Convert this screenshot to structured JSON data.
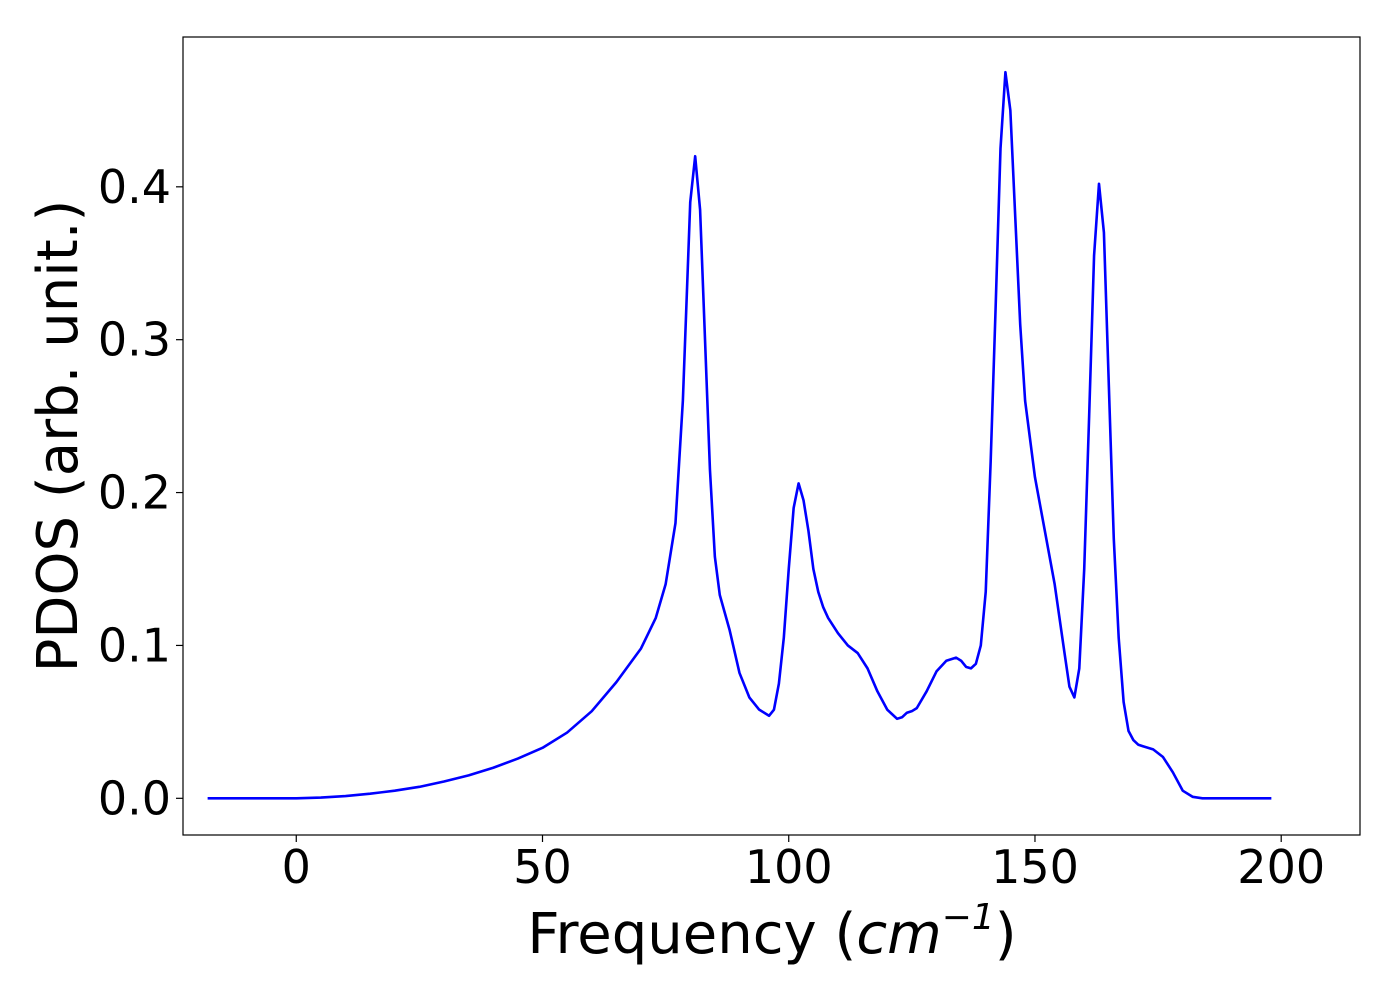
{
  "chart_data": {
    "type": "line",
    "title": "",
    "xlabel": "Frequency",
    "xlabel_unit_base": "cm",
    "xlabel_unit_exp": "−1",
    "ylabel": "PDOS (arb. unit.)",
    "xlim": [
      -23,
      216
    ],
    "ylim": [
      -0.024,
      0.498
    ],
    "xticks": [
      0,
      50,
      100,
      150,
      200
    ],
    "xtick_labels": [
      "0",
      "50",
      "100",
      "150",
      "200"
    ],
    "yticks": [
      0.0,
      0.1,
      0.2,
      0.3,
      0.4
    ],
    "ytick_labels": [
      "0.0",
      "0.1",
      "0.2",
      "0.3",
      "0.4"
    ],
    "grid": false,
    "legend": "none",
    "series": [
      {
        "color": "#0000ff",
        "x": [
          -18,
          0,
          5,
          10,
          15,
          20,
          25,
          30,
          35,
          40,
          45,
          50,
          55,
          60,
          65,
          70,
          73,
          75,
          77,
          78.5,
          80,
          81,
          82,
          83,
          84,
          85,
          86,
          88,
          90,
          92,
          94,
          96,
          97,
          98,
          99,
          100,
          101,
          102,
          103,
          104,
          105,
          106,
          107,
          108,
          110,
          112,
          114,
          116,
          118,
          120,
          122,
          123,
          124,
          125,
          126,
          128,
          130,
          132,
          134,
          135,
          136,
          137,
          138,
          139,
          140,
          141,
          142,
          143,
          144,
          145,
          146,
          147,
          148,
          149,
          150,
          152,
          154,
          156,
          157,
          158,
          159,
          160,
          161,
          162,
          163,
          164,
          165,
          166,
          167,
          168,
          169,
          170,
          171,
          172,
          174,
          176,
          178,
          180,
          182,
          184,
          186,
          190,
          198
        ],
        "values": [
          0.0,
          0.0,
          0.0005,
          0.0015,
          0.003,
          0.005,
          0.0075,
          0.011,
          0.015,
          0.02,
          0.026,
          0.033,
          0.043,
          0.057,
          0.076,
          0.098,
          0.118,
          0.14,
          0.18,
          0.26,
          0.39,
          0.42,
          0.385,
          0.3,
          0.215,
          0.158,
          0.133,
          0.11,
          0.082,
          0.066,
          0.058,
          0.054,
          0.058,
          0.075,
          0.105,
          0.15,
          0.19,
          0.206,
          0.195,
          0.175,
          0.15,
          0.135,
          0.125,
          0.118,
          0.108,
          0.1,
          0.095,
          0.085,
          0.07,
          0.058,
          0.052,
          0.053,
          0.056,
          0.057,
          0.059,
          0.07,
          0.083,
          0.09,
          0.092,
          0.09,
          0.086,
          0.085,
          0.088,
          0.1,
          0.135,
          0.22,
          0.32,
          0.425,
          0.475,
          0.45,
          0.38,
          0.31,
          0.26,
          0.235,
          0.21,
          0.175,
          0.14,
          0.095,
          0.073,
          0.066,
          0.085,
          0.15,
          0.25,
          0.355,
          0.402,
          0.37,
          0.27,
          0.17,
          0.105,
          0.063,
          0.044,
          0.038,
          0.035,
          0.034,
          0.032,
          0.027,
          0.017,
          0.005,
          0.001,
          0.0,
          0.0,
          0.0,
          0.0
        ]
      }
    ]
  }
}
